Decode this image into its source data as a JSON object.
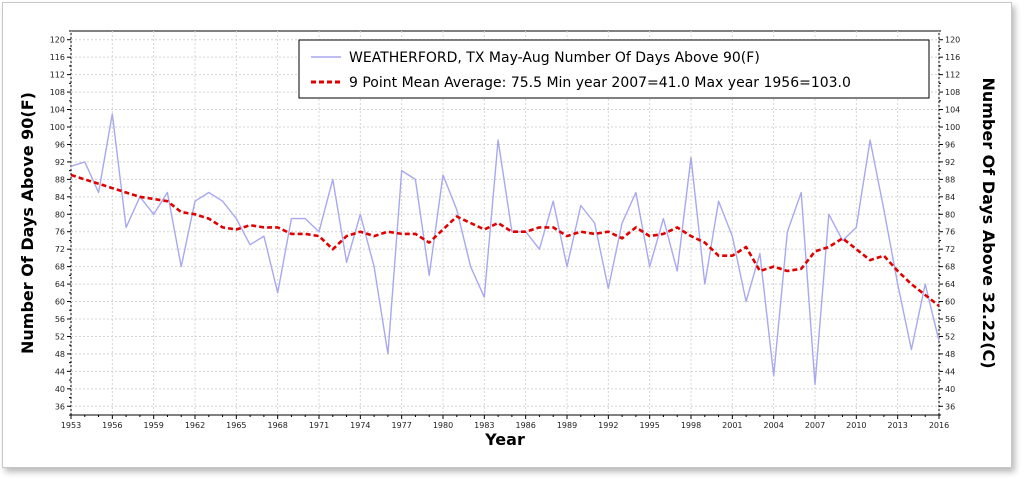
{
  "chart_data": {
    "type": "line",
    "xlabel": "Year",
    "ylabel_left": "Number Of Days Above 90(F)",
    "ylabel_right": "Number Of Days Above 32.22(C)",
    "xlim": [
      1953,
      2016
    ],
    "ylim": [
      34,
      122
    ],
    "x_ticks": [
      1953,
      1956,
      1959,
      1962,
      1965,
      1968,
      1971,
      1974,
      1977,
      1980,
      1983,
      1986,
      1989,
      1992,
      1995,
      1998,
      2001,
      2004,
      2007,
      2010,
      2013,
      2016
    ],
    "y_ticks": [
      36,
      40,
      44,
      48,
      52,
      56,
      60,
      64,
      68,
      72,
      76,
      80,
      84,
      88,
      92,
      96,
      100,
      104,
      108,
      112,
      116,
      120
    ],
    "grid": true,
    "legend_position": "top",
    "series": [
      {
        "name": "WEATHERFORD, TX  May-Aug  Number Of Days Above 90(F)",
        "color": "#a8a8f0",
        "style": "solid",
        "x": [
          1953,
          1954,
          1955,
          1956,
          1957,
          1958,
          1959,
          1960,
          1961,
          1962,
          1963,
          1964,
          1965,
          1966,
          1967,
          1968,
          1969,
          1970,
          1971,
          1972,
          1973,
          1974,
          1975,
          1976,
          1977,
          1978,
          1979,
          1980,
          1981,
          1982,
          1983,
          1984,
          1985,
          1986,
          1987,
          1988,
          1989,
          1990,
          1991,
          1992,
          1993,
          1994,
          1995,
          1996,
          1997,
          1998,
          1999,
          2000,
          2001,
          2002,
          2003,
          2004,
          2005,
          2006,
          2007,
          2008,
          2009,
          2010,
          2011,
          2012,
          2013,
          2014,
          2015,
          2016
        ],
        "values": [
          91,
          92,
          85,
          103,
          77,
          84,
          80,
          85,
          68,
          83,
          85,
          83,
          79,
          73,
          75,
          62,
          79,
          79,
          76,
          88,
          69,
          80,
          68,
          48,
          90,
          88,
          66,
          89,
          81,
          68,
          61,
          97,
          76,
          76,
          72,
          83,
          68,
          82,
          78,
          63,
          78,
          85,
          68,
          79,
          67,
          93,
          64,
          83,
          75,
          60,
          71,
          43,
          76,
          85,
          41,
          80,
          74,
          77,
          97,
          81,
          64,
          49,
          64,
          51
        ]
      },
      {
        "name": "9 Point Mean  Average: 75.5  Min year 2007=41.0  Max year 1956=103.0",
        "color": "#e00000",
        "style": "dashed",
        "x": [
          1953,
          1954,
          1955,
          1956,
          1957,
          1958,
          1959,
          1960,
          1961,
          1962,
          1963,
          1964,
          1965,
          1966,
          1967,
          1968,
          1969,
          1970,
          1971,
          1972,
          1973,
          1974,
          1975,
          1976,
          1977,
          1978,
          1979,
          1980,
          1981,
          1982,
          1983,
          1984,
          1985,
          1986,
          1987,
          1988,
          1989,
          1990,
          1991,
          1992,
          1993,
          1994,
          1995,
          1996,
          1997,
          1998,
          1999,
          2000,
          2001,
          2002,
          2003,
          2004,
          2005,
          2006,
          2007,
          2008,
          2009,
          2010,
          2011,
          2012,
          2013,
          2014,
          2015,
          2016
        ],
        "values": [
          89,
          88,
          87,
          86,
          85,
          84,
          83.5,
          83,
          80.5,
          80,
          79,
          77,
          76.5,
          77.5,
          77,
          77,
          75.5,
          75.5,
          75,
          72,
          75,
          76,
          75,
          76,
          75.5,
          75.5,
          73.5,
          76.5,
          79.5,
          78,
          76.5,
          78,
          76,
          76,
          77,
          77,
          75,
          76,
          75.5,
          76,
          74.5,
          77,
          75,
          75.5,
          77,
          75,
          73.5,
          70.5,
          70.5,
          72.5,
          67,
          68,
          67,
          67.5,
          71.5,
          72.5,
          74.5,
          72,
          69.5,
          70.5,
          67,
          64,
          61.5,
          59
        ]
      }
    ]
  }
}
